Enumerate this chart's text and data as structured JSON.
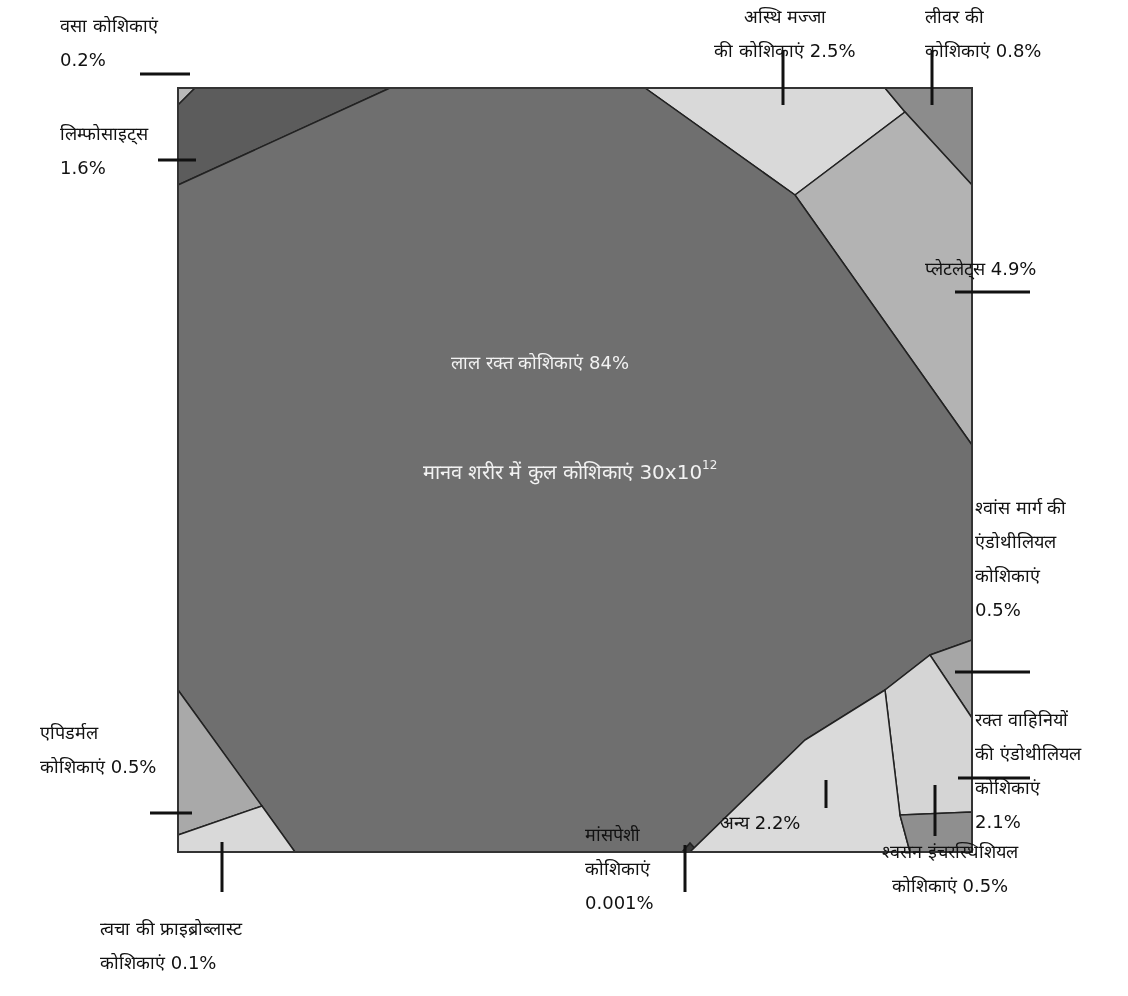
{
  "chart_data": {
    "type": "other",
    "title": "मानव शरीर में कुल कोशिकाएं 30x10$^{12}$",
    "categories": [
      "वसा कोशिकाएं",
      "लिम्फोसाइट्स",
      "अस्थि मज्जा की कोशिकाएं",
      "लीवर की कोशिकाएं",
      "प्लेटलेट्स",
      "लाल रक्त कोशिकाएं",
      "श्वांस मार्ग की एंडोथीलियल कोशिकाएं",
      "एपिडर्मल कोशिकाएं",
      "रक्त वाहिनियों की एंडोथीलियल कोशिकाएं",
      "त्वचा की फ्राइब्रोब्लास्ट कोशिकाएं",
      "मांसपेशी कोशिकाएं",
      "अन्य",
      "श्वसन इंचरस्थिशियल कोशिकाएं"
    ],
    "values": [
      0.2,
      1.6,
      2.5,
      0.8,
      4.9,
      84,
      0.5,
      0.5,
      2.1,
      0.1,
      0.001,
      2.2,
      0.5
    ],
    "value_labels": [
      "0.2%",
      "1.6%",
      "2.5%",
      "0.8%",
      "4.9%",
      "84%",
      "0.5%",
      "0.5%",
      "2.1%",
      "0.1%",
      "0.001%",
      "2.2%",
      "0.5%"
    ],
    "colors": [
      "#b8b8b8",
      "#5c5c5c",
      "#d9d9d9",
      "#8c8c8c",
      "#b3b3b3",
      "#6f6f6f",
      "#a6a6a6",
      "#a9a9a9",
      "#d5d5d5",
      "#d9d9d9",
      "#3a3a3a",
      "#dadada",
      "#8f8f8f"
    ]
  }
}
